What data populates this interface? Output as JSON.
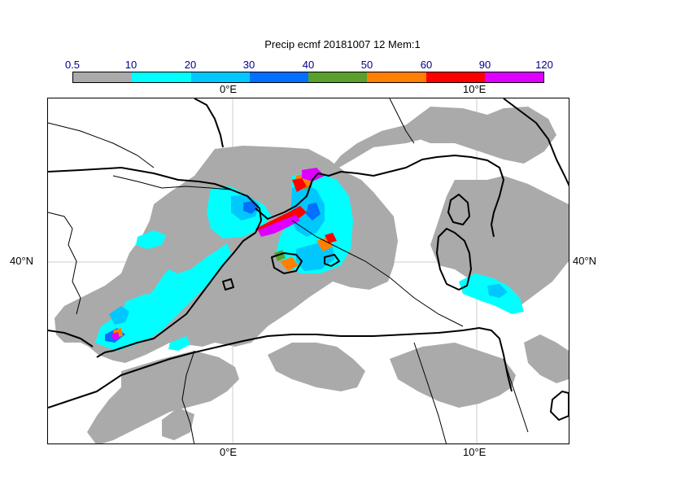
{
  "title": "Precip ecmf 20181007 12 Mem:1",
  "colorbar": {
    "ticks": [
      "0.5",
      "10",
      "20",
      "30",
      "40",
      "50",
      "60",
      "90",
      "120"
    ],
    "colors": [
      "#aaaaaa",
      "#00ffff",
      "#00c8ff",
      "#0070ff",
      "#5aa02c",
      "#ff8000",
      "#ff0000",
      "#dd00ff",
      "#000000"
    ]
  },
  "map": {
    "lon_labels": [
      "0°E",
      "10°E"
    ],
    "lat_labels": [
      "40°N"
    ]
  }
}
